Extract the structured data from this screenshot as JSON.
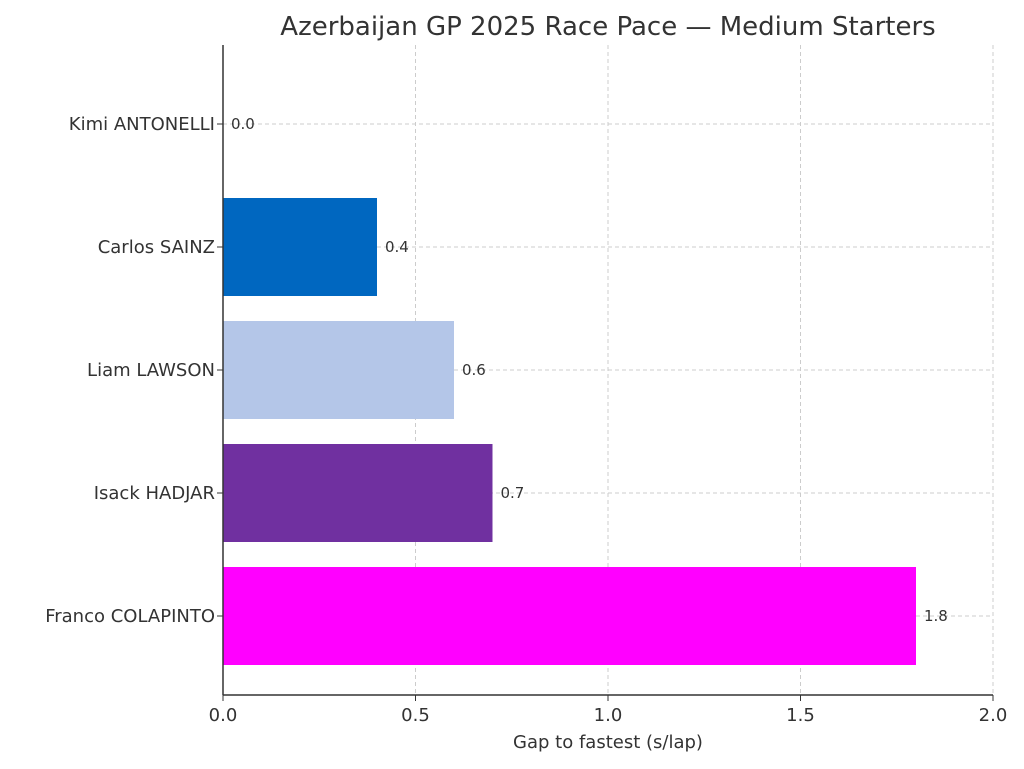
{
  "chart_data": {
    "type": "bar",
    "orientation": "horizontal",
    "title": "Azerbaijan GP 2025 Race Pace — Medium Starters",
    "xlabel": "Gap to fastest (s/lap)",
    "ylabel": "",
    "xlim": [
      0,
      2.0
    ],
    "x_ticks": [
      "0.0",
      "0.5",
      "1.0",
      "1.5",
      "2.0"
    ],
    "grid": true,
    "categories": [
      "Kimi ANTONELLI",
      "Carlos SAINZ",
      "Liam LAWSON",
      "Isack HADJAR",
      "Franco COLAPINTO"
    ],
    "values": [
      0.0,
      0.4,
      0.6,
      0.7,
      1.8
    ],
    "value_labels": [
      "0.0",
      "0.4",
      "0.6",
      "0.7",
      "1.8"
    ],
    "colors": [
      "#6cd3bf",
      "#0067c0",
      "#b4c6e8",
      "#7030a0",
      "#ff00ff"
    ]
  }
}
